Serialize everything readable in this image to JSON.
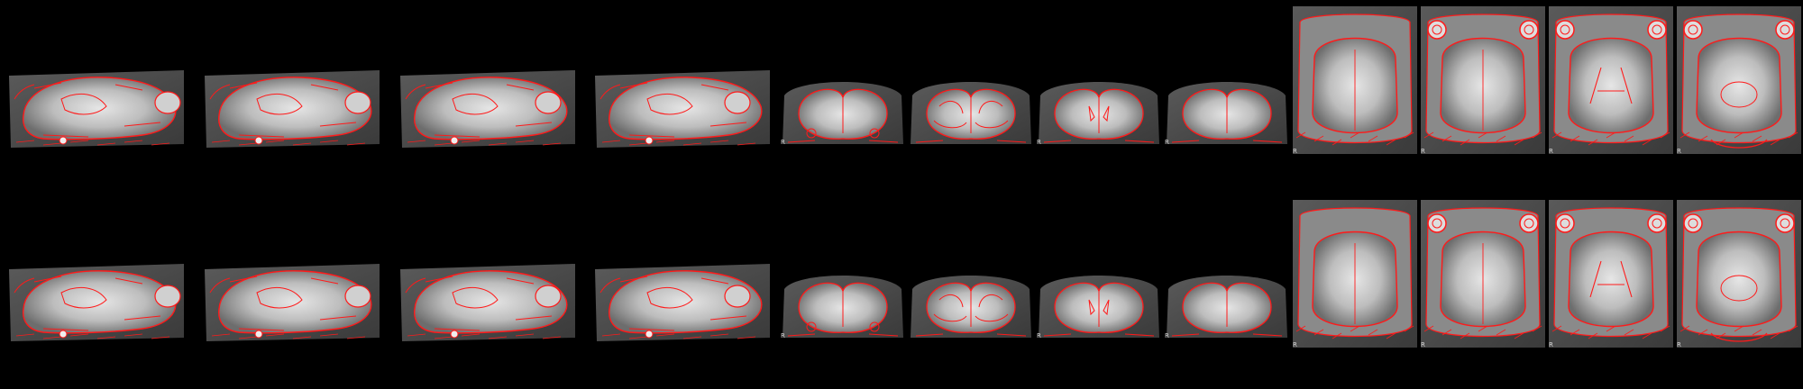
{
  "figure": {
    "background": "#000000",
    "outline_color": "#ff1a1a",
    "rows": [
      {
        "name": "row-1",
        "panels": [
          {
            "view": "sagittal",
            "label": ""
          },
          {
            "view": "sagittal",
            "label": ""
          },
          {
            "view": "sagittal",
            "label": ""
          },
          {
            "view": "sagittal",
            "label": ""
          },
          {
            "view": "coronal",
            "label": "R"
          },
          {
            "view": "coronal",
            "label": ""
          },
          {
            "view": "coronal",
            "label": "R"
          },
          {
            "view": "coronal",
            "label": "R"
          },
          {
            "view": "axial",
            "label": "R"
          },
          {
            "view": "axial",
            "label": "R"
          },
          {
            "view": "axial",
            "label": "R"
          },
          {
            "view": "axial",
            "label": "R"
          }
        ]
      },
      {
        "name": "row-2",
        "panels": [
          {
            "view": "sagittal",
            "label": ""
          },
          {
            "view": "sagittal",
            "label": ""
          },
          {
            "view": "sagittal",
            "label": ""
          },
          {
            "view": "sagittal",
            "label": ""
          },
          {
            "view": "coronal",
            "label": "R"
          },
          {
            "view": "coronal",
            "label": ""
          },
          {
            "view": "coronal",
            "label": "R"
          },
          {
            "view": "coronal",
            "label": "R"
          },
          {
            "view": "axial",
            "label": "R"
          },
          {
            "view": "axial",
            "label": "R"
          },
          {
            "view": "axial",
            "label": "R"
          },
          {
            "view": "axial",
            "label": "R"
          }
        ]
      }
    ]
  }
}
